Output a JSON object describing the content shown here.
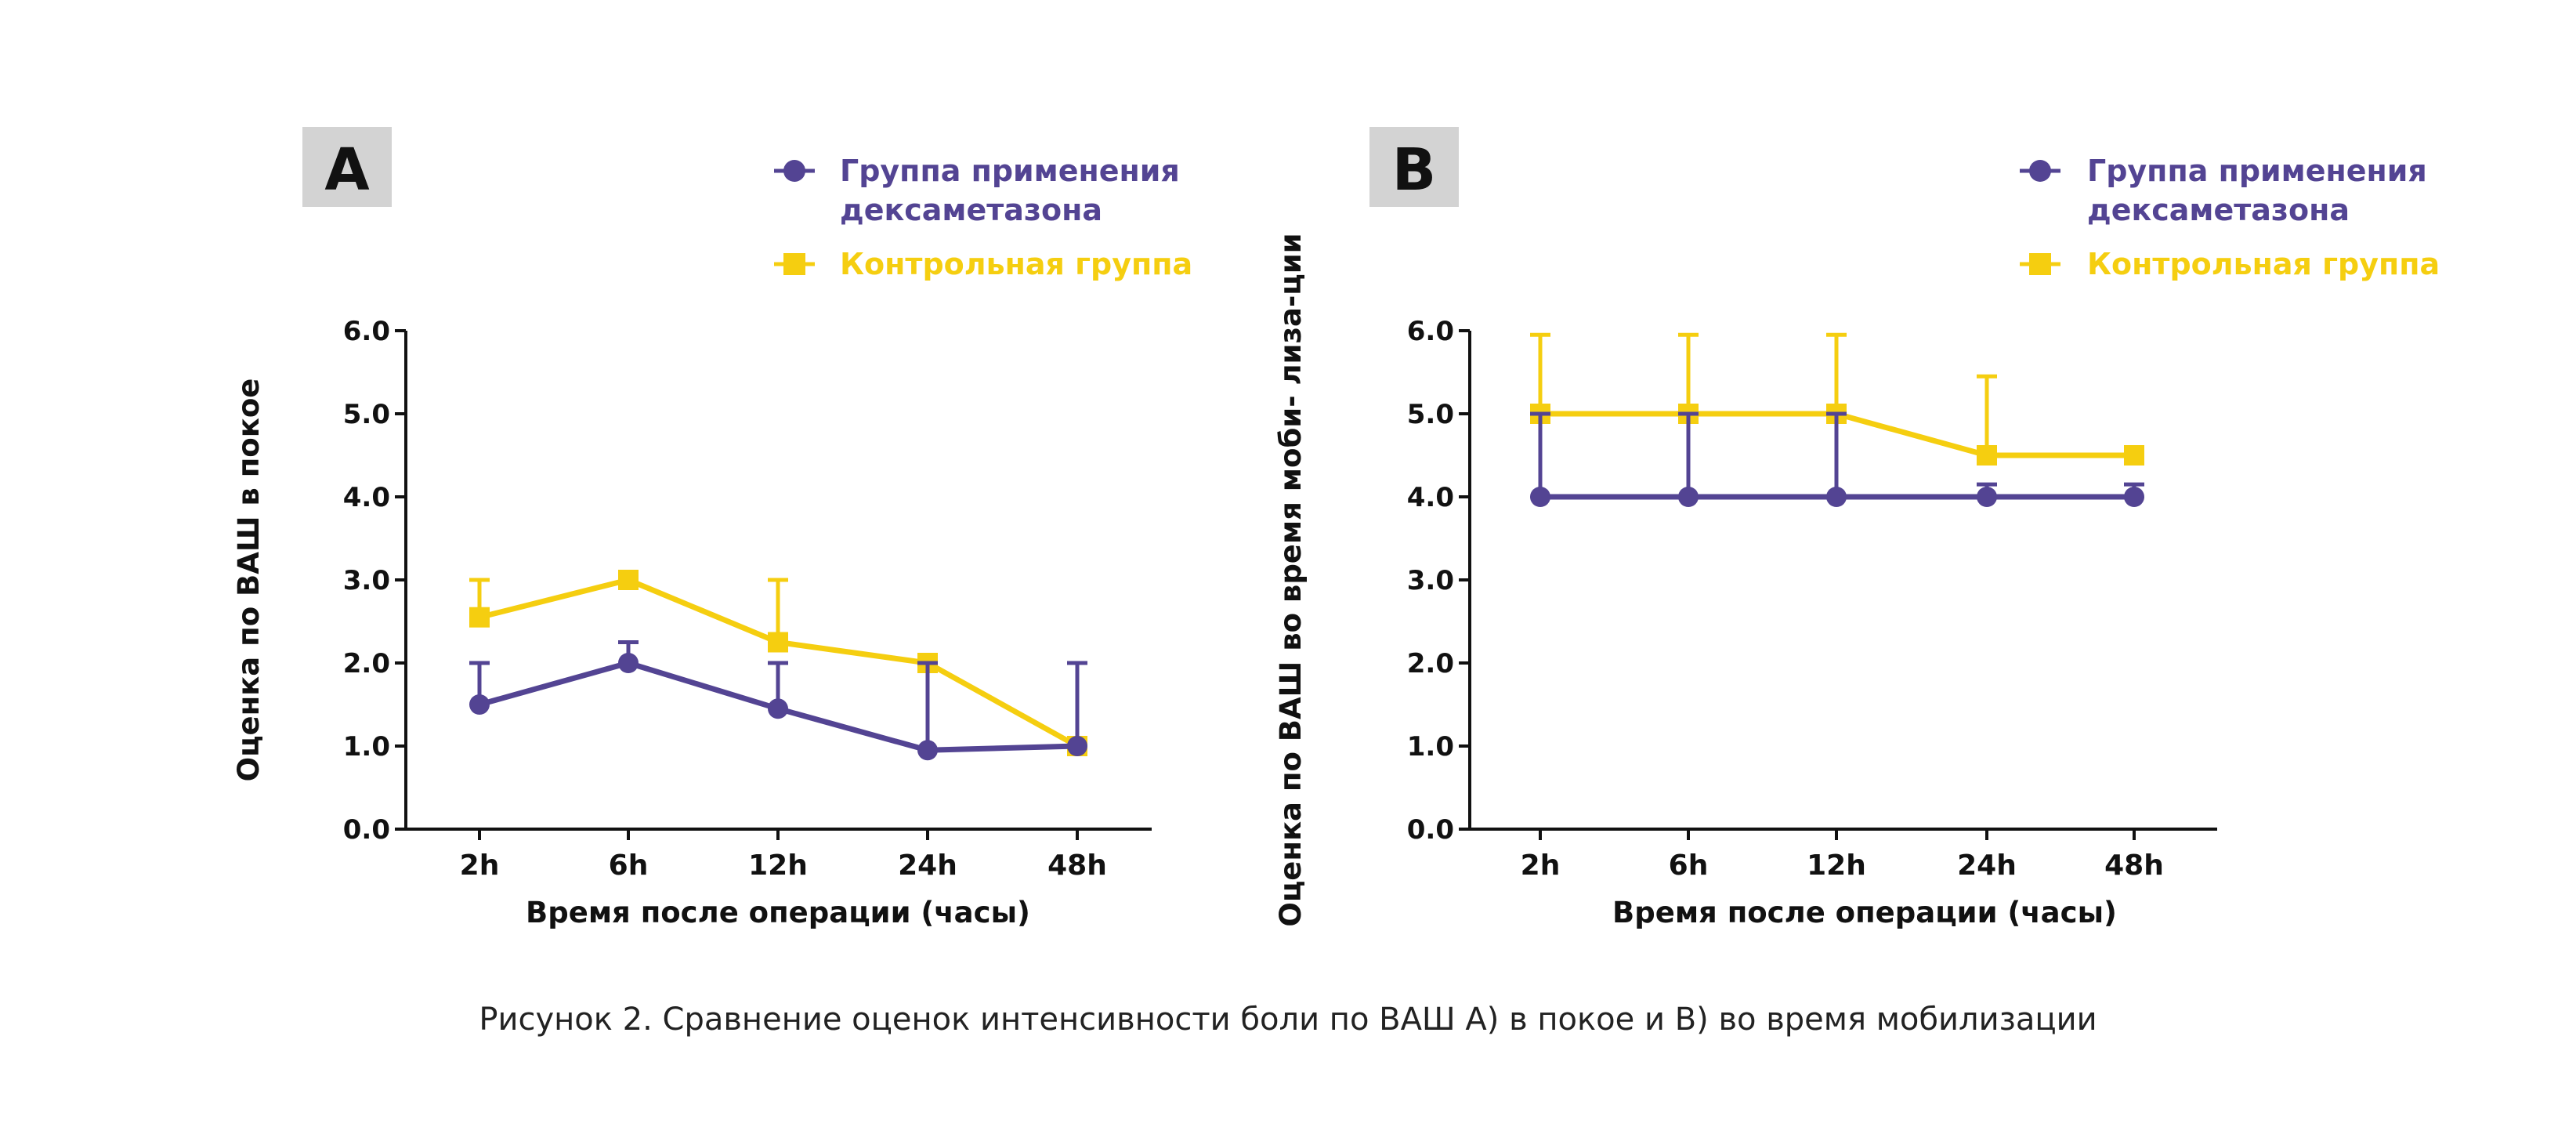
{
  "caption": "Рисунок 2. Сравнение оценок интенсивности боли по ВАШ А) в покое и В) во время мобилизации",
  "colors": {
    "purple": "#534493",
    "yellow": "#F5CE10",
    "axis": "#111111",
    "panel_tag_bg": "#D3D3D3"
  },
  "chart_data": [
    {
      "type": "line",
      "panel_label": "A",
      "xlabel": "Время после операции (часы)",
      "ylabel": "Оценка по ВАШ в покое",
      "categories": [
        "2h",
        "6h",
        "12h",
        "24h",
        "48h"
      ],
      "yticks": [
        "0.0",
        "1.0",
        "2.0",
        "3.0",
        "4.0",
        "5.0",
        "6.0"
      ],
      "ylim": [
        0,
        6
      ],
      "legend_position": "top-right",
      "series": [
        {
          "name": "Группа применения дексаметазона",
          "legend_lines": [
            "Группа применения",
            "дексаметазона"
          ],
          "marker": "circle",
          "color": "#534493",
          "values": [
            1.5,
            2.0,
            1.45,
            0.95,
            1.0
          ],
          "error_plus": [
            0.5,
            0.25,
            0.55,
            1.05,
            1.0
          ]
        },
        {
          "name": "Контрольная группа",
          "legend_lines": [
            "Контрольная группа"
          ],
          "marker": "square",
          "color": "#F5CE10",
          "values": [
            2.55,
            3.0,
            2.25,
            2.0,
            1.0
          ],
          "error_plus": [
            0.45,
            0.0,
            0.75,
            0.05,
            0.0
          ]
        }
      ]
    },
    {
      "type": "line",
      "panel_label": "B",
      "xlabel": "Время после операции (часы)",
      "ylabel": "Оценка по ВАШ во время моби- лиза-ции",
      "categories": [
        "2h",
        "6h",
        "12h",
        "24h",
        "48h"
      ],
      "yticks": [
        "0.0",
        "1.0",
        "2.0",
        "3.0",
        "4.0",
        "5.0",
        "6.0"
      ],
      "ylim": [
        0,
        6
      ],
      "legend_position": "top-right",
      "series": [
        {
          "name": "Группа применения дексаметазона",
          "legend_lines": [
            "Группа применения",
            "дексаметазона"
          ],
          "marker": "circle",
          "color": "#534493",
          "values": [
            4.0,
            4.0,
            4.0,
            4.0,
            4.0
          ],
          "error_plus": [
            1.0,
            1.0,
            1.0,
            0.15,
            0.15
          ]
        },
        {
          "name": "Контрольная группа",
          "legend_lines": [
            "Контрольная группа"
          ],
          "marker": "square",
          "color": "#F5CE10",
          "values": [
            5.0,
            5.0,
            5.0,
            4.5,
            4.5
          ],
          "error_plus": [
            0.95,
            0.95,
            0.95,
            0.95,
            0.0
          ]
        }
      ]
    }
  ]
}
